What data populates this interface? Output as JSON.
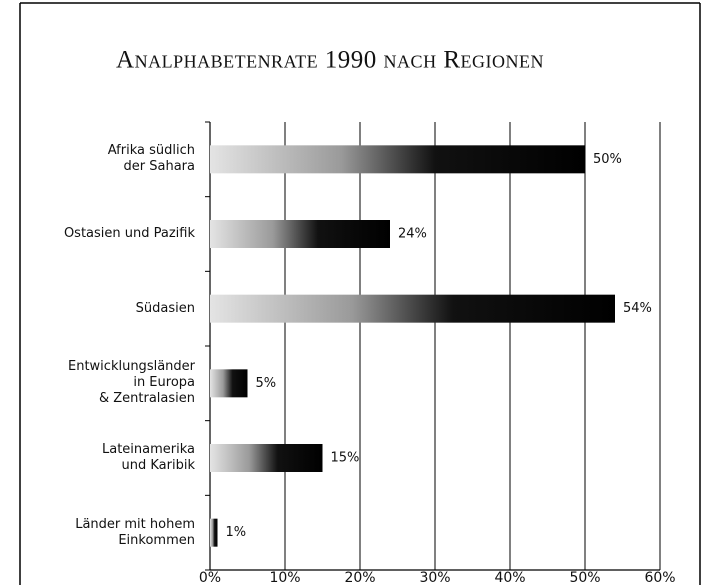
{
  "chart_data": {
    "type": "bar",
    "orientation": "horizontal",
    "title": "Analphabetenrate 1990 nach Regionen",
    "categories": [
      "Afrika südlich\nder Sahara",
      "Ostasien und Pazifik",
      "Südasien",
      "Entwicklungsländer\nin Europa\n& Zentralasien",
      "Lateinamerika\nund Karibik",
      "Länder mit hohem\nEinkommen"
    ],
    "values": [
      50,
      24,
      54,
      5,
      15,
      1
    ],
    "value_labels": [
      "50%",
      "24%",
      "54%",
      "5%",
      "15%",
      "1%"
    ],
    "color": "#000000",
    "xlim": [
      0,
      60
    ],
    "xticks": [
      {
        "value": 0,
        "label": "0%"
      },
      {
        "value": 10,
        "label": "10%"
      },
      {
        "value": 20,
        "label": "20%"
      },
      {
        "value": 30,
        "label": "30%"
      },
      {
        "value": 40,
        "label": "40%"
      },
      {
        "value": 50,
        "label": "50%"
      },
      {
        "value": 60,
        "label": "60%"
      }
    ],
    "grid": true
  }
}
